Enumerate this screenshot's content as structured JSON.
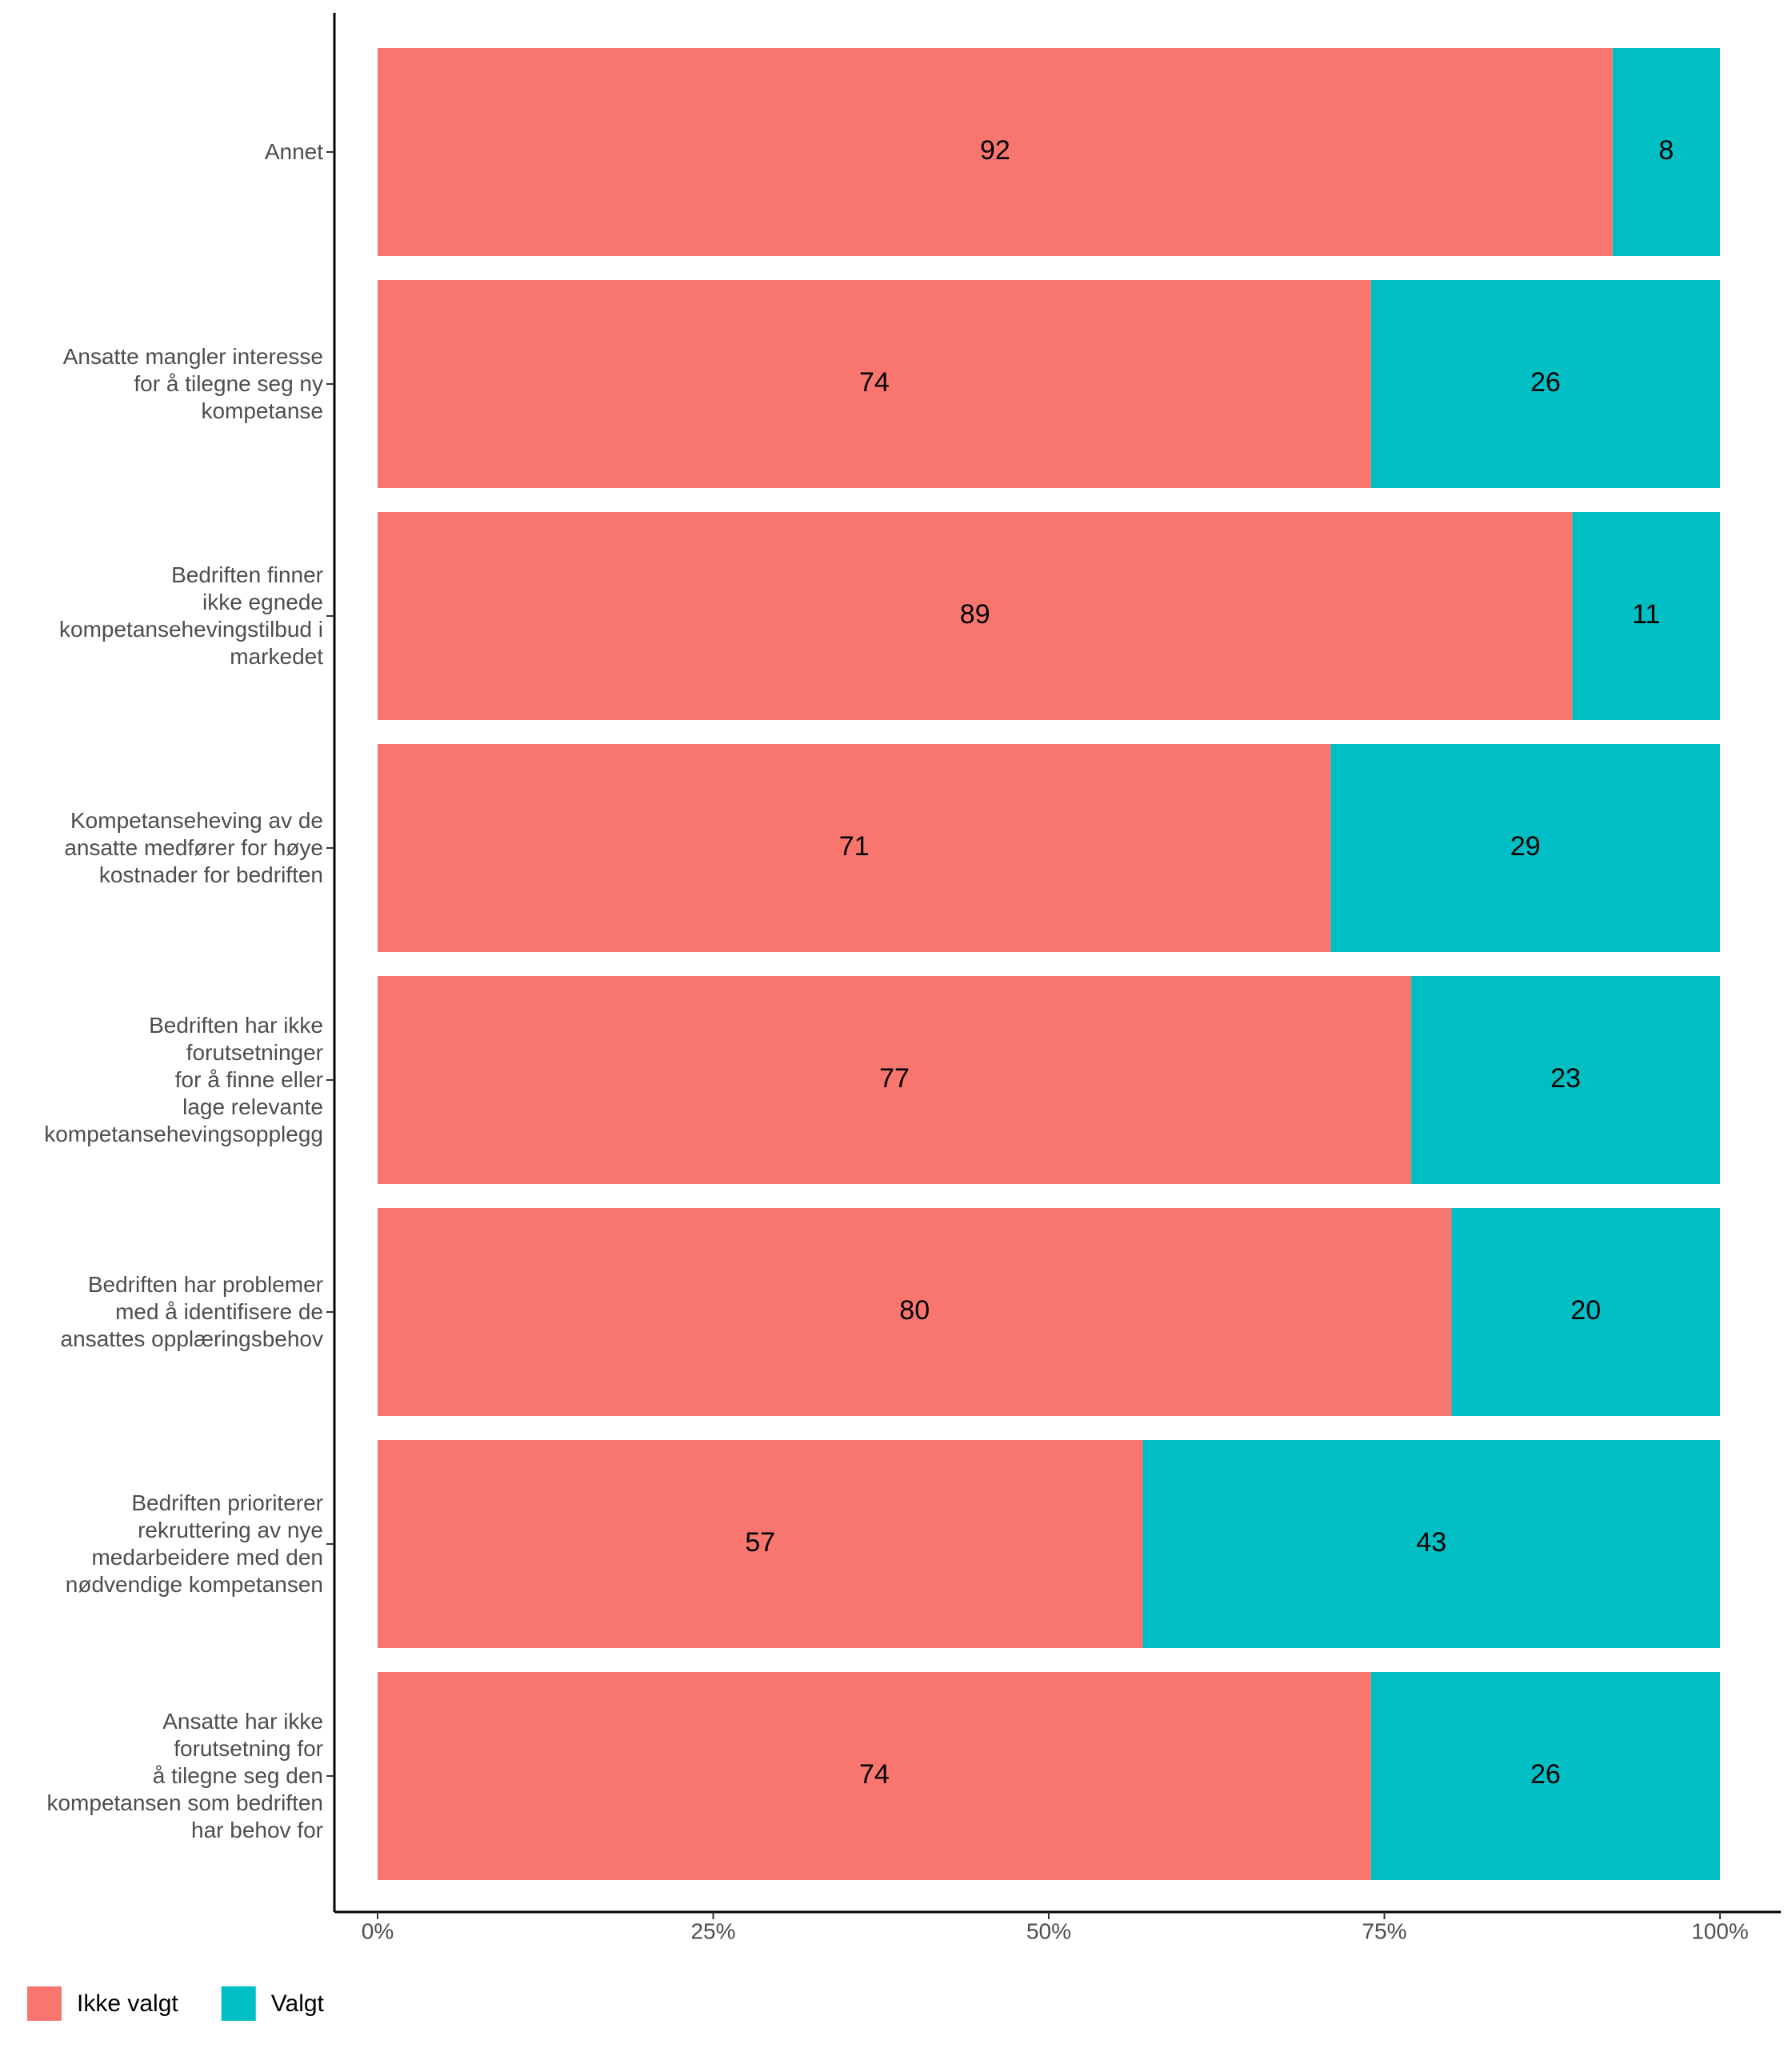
{
  "chart_data": {
    "type": "stacked-bar-horizontal",
    "categories": [
      "Annet",
      "Ansatte mangler interesse\nfor å tilegne seg ny\nkompetanse",
      "Bedriften finner\nikke egnede\nkompetansehevingstilbud i\nmarkedet",
      "Kompetanseheving av de\nansatte medfører for høye\nkostnader for bedriften",
      "Bedriften har ikke\nforutsetninger\nfor å finne eller\nlage relevante\nkompetansehevingsopplegg",
      "Bedriften har problemer\nmed å identifisere de\nansattes opplæringsbehov",
      "Bedriften prioriterer\nrekruttering av nye\nmedarbeidere med den\nnødvendige kompetansen",
      "Ansatte har ikke\nforutsetning for\nå tilegne seg den\nkompetansen som bedriften\nhar behov for"
    ],
    "series": [
      {
        "name": "Ikke valgt",
        "color": "#F8766D",
        "values": [
          92,
          74,
          89,
          71,
          77,
          80,
          57,
          74
        ]
      },
      {
        "name": "Valgt",
        "color": "#00BFC4",
        "values": [
          8,
          26,
          11,
          29,
          23,
          20,
          43,
          26
        ]
      }
    ],
    "xlim": [
      0,
      100
    ],
    "xticks": [
      {
        "value": 0,
        "label": "0%"
      },
      {
        "value": 25,
        "label": "25%"
      },
      {
        "value": 50,
        "label": "50%"
      },
      {
        "value": 75,
        "label": "75%"
      },
      {
        "value": 100,
        "label": "100%"
      }
    ],
    "legend": "bottom-left",
    "grid": false
  }
}
